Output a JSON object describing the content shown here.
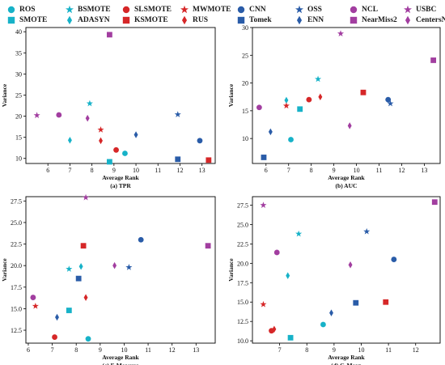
{
  "legend": [
    {
      "name": "ROS",
      "color": "#17b2c8",
      "marker": "circle"
    },
    {
      "name": "SMOTE",
      "color": "#17b2c8",
      "marker": "square"
    },
    {
      "name": "BSMOTE",
      "color": "#17b2c8",
      "marker": "star"
    },
    {
      "name": "ADASYN",
      "color": "#17b2c8",
      "marker": "diamond"
    },
    {
      "name": "SLSMOTE",
      "color": "#d62728",
      "marker": "circle"
    },
    {
      "name": "KSMOTE",
      "color": "#d62728",
      "marker": "square"
    },
    {
      "name": "MWMOTE",
      "color": "#d62728",
      "marker": "star"
    },
    {
      "name": "RUS",
      "color": "#d62728",
      "marker": "diamond"
    },
    {
      "name": "CNN",
      "color": "#2a5ca8",
      "marker": "circle"
    },
    {
      "name": "Tomek",
      "color": "#2a5ca8",
      "marker": "square"
    },
    {
      "name": "OSS",
      "color": "#2a5ca8",
      "marker": "star"
    },
    {
      "name": "ENN",
      "color": "#2a5ca8",
      "marker": "diamond"
    },
    {
      "name": "NCL",
      "color": "#a23ea0",
      "marker": "circle"
    },
    {
      "name": "NearMiss2",
      "color": "#a23ea0",
      "marker": "square"
    },
    {
      "name": "USBC",
      "color": "#a23ea0",
      "marker": "star"
    },
    {
      "name": "CentersNN",
      "color": "#a23ea0",
      "marker": "diamond"
    }
  ],
  "chart_data": [
    {
      "type": "scatter",
      "caption": "(a) TPR",
      "xlabel": "Average Rank",
      "ylabel": "Variance",
      "xlim": [
        5.0,
        13.6
      ],
      "ylim": [
        8.8,
        41.0
      ],
      "xticks": [
        6,
        7,
        8,
        9,
        10,
        11,
        12,
        13
      ],
      "yticks": [
        10,
        15,
        20,
        25,
        30,
        35,
        40
      ],
      "points": [
        {
          "name": "ROS",
          "x": 9.5,
          "y": 11.2
        },
        {
          "name": "SMOTE",
          "x": 8.8,
          "y": 9.2
        },
        {
          "name": "BSMOTE",
          "x": 7.9,
          "y": 23.0
        },
        {
          "name": "ADASYN",
          "x": 7.0,
          "y": 14.3
        },
        {
          "name": "SLSMOTE",
          "x": 9.1,
          "y": 12.0
        },
        {
          "name": "KSMOTE",
          "x": 13.3,
          "y": 9.6
        },
        {
          "name": "MWMOTE",
          "x": 8.4,
          "y": 16.8
        },
        {
          "name": "RUS",
          "x": 8.4,
          "y": 14.2
        },
        {
          "name": "CNN",
          "x": 12.9,
          "y": 14.2
        },
        {
          "name": "Tomek",
          "x": 11.9,
          "y": 9.8
        },
        {
          "name": "OSS",
          "x": 11.9,
          "y": 20.4
        },
        {
          "name": "ENN",
          "x": 10.0,
          "y": 15.6
        },
        {
          "name": "NCL",
          "x": 6.5,
          "y": 20.3
        },
        {
          "name": "NearMiss2",
          "x": 8.8,
          "y": 39.3
        },
        {
          "name": "USBC",
          "x": 5.5,
          "y": 20.2
        },
        {
          "name": "CentersNN",
          "x": 7.8,
          "y": 19.5
        }
      ]
    },
    {
      "type": "scatter",
      "caption": "(b) AUC",
      "xlabel": "Average Rank",
      "ylabel": "Variance",
      "xlim": [
        5.4,
        13.7
      ],
      "ylim": [
        5.5,
        30.0
      ],
      "xticks": [
        6,
        7,
        8,
        9,
        10,
        11,
        12,
        13
      ],
      "yticks": [
        10,
        15,
        20,
        25,
        30
      ],
      "points": [
        {
          "name": "ROS",
          "x": 7.1,
          "y": 9.8
        },
        {
          "name": "SMOTE",
          "x": 7.5,
          "y": 15.3
        },
        {
          "name": "BSMOTE",
          "x": 8.3,
          "y": 20.7
        },
        {
          "name": "ADASYN",
          "x": 6.9,
          "y": 16.9
        },
        {
          "name": "SLSMOTE",
          "x": 7.9,
          "y": 17.0
        },
        {
          "name": "KSMOTE",
          "x": 10.3,
          "y": 18.3
        },
        {
          "name": "MWMOTE",
          "x": 6.9,
          "y": 15.9
        },
        {
          "name": "RUS",
          "x": 8.4,
          "y": 17.5
        },
        {
          "name": "CNN",
          "x": 11.4,
          "y": 17.0
        },
        {
          "name": "Tomek",
          "x": 5.9,
          "y": 6.6
        },
        {
          "name": "OSS",
          "x": 11.5,
          "y": 16.3
        },
        {
          "name": "ENN",
          "x": 6.2,
          "y": 11.2
        },
        {
          "name": "NCL",
          "x": 5.7,
          "y": 15.6
        },
        {
          "name": "NearMiss2",
          "x": 13.4,
          "y": 24.1
        },
        {
          "name": "USBC",
          "x": 9.3,
          "y": 28.9
        },
        {
          "name": "CentersNN",
          "x": 9.7,
          "y": 12.3
        }
      ]
    },
    {
      "type": "scatter",
      "caption": "(c) F-Measure",
      "xlabel": "Average Rank",
      "ylabel": "Variance",
      "xlim": [
        5.9,
        13.8
      ],
      "ylim": [
        11.0,
        28.0
      ],
      "xticks": [
        6,
        7,
        8,
        9,
        10,
        11,
        12,
        13
      ],
      "yticks": [
        12.5,
        15.0,
        17.5,
        20.0,
        22.5,
        25.0,
        27.5
      ],
      "points": [
        {
          "name": "ROS",
          "x": 8.5,
          "y": 11.5
        },
        {
          "name": "SMOTE",
          "x": 7.7,
          "y": 14.8
        },
        {
          "name": "BSMOTE",
          "x": 7.7,
          "y": 19.6
        },
        {
          "name": "ADASYN",
          "x": 8.2,
          "y": 19.9
        },
        {
          "name": "SLSMOTE",
          "x": 7.1,
          "y": 11.7
        },
        {
          "name": "KSMOTE",
          "x": 8.3,
          "y": 22.3
        },
        {
          "name": "MWMOTE",
          "x": 6.3,
          "y": 15.3
        },
        {
          "name": "RUS",
          "x": 8.4,
          "y": 16.3
        },
        {
          "name": "CNN",
          "x": 10.7,
          "y": 23.0
        },
        {
          "name": "Tomek",
          "x": 8.1,
          "y": 18.5
        },
        {
          "name": "OSS",
          "x": 10.2,
          "y": 19.8
        },
        {
          "name": "ENN",
          "x": 7.2,
          "y": 14.0
        },
        {
          "name": "NCL",
          "x": 6.2,
          "y": 16.3
        },
        {
          "name": "NearMiss2",
          "x": 13.5,
          "y": 22.3
        },
        {
          "name": "USBC",
          "x": 8.4,
          "y": 27.9
        },
        {
          "name": "CentersNN",
          "x": 9.6,
          "y": 20.0
        }
      ]
    },
    {
      "type": "scatter",
      "caption": "(d) G-Mean",
      "xlabel": "Average Rank",
      "ylabel": "Variance",
      "xlim": [
        6.0,
        12.9
      ],
      "ylim": [
        9.7,
        28.6
      ],
      "xticks": [
        7,
        8,
        9,
        10,
        11,
        12
      ],
      "yticks": [
        10.0,
        12.5,
        15.0,
        17.5,
        20.0,
        22.5,
        25.0,
        27.5
      ],
      "points": [
        {
          "name": "ROS",
          "x": 8.6,
          "y": 12.1
        },
        {
          "name": "SMOTE",
          "x": 7.4,
          "y": 10.4
        },
        {
          "name": "BSMOTE",
          "x": 7.7,
          "y": 23.8
        },
        {
          "name": "ADASYN",
          "x": 7.3,
          "y": 18.4
        },
        {
          "name": "SLSMOTE",
          "x": 6.7,
          "y": 11.3
        },
        {
          "name": "KSMOTE",
          "x": 10.9,
          "y": 15.0
        },
        {
          "name": "MWMOTE",
          "x": 6.4,
          "y": 14.7
        },
        {
          "name": "RUS",
          "x": 6.8,
          "y": 11.5
        },
        {
          "name": "CNN",
          "x": 11.2,
          "y": 20.5
        },
        {
          "name": "Tomek",
          "x": 9.8,
          "y": 14.9
        },
        {
          "name": "OSS",
          "x": 10.2,
          "y": 24.1
        },
        {
          "name": "ENN",
          "x": 8.9,
          "y": 13.6
        },
        {
          "name": "NCL",
          "x": 6.9,
          "y": 21.4
        },
        {
          "name": "NearMiss2",
          "x": 12.7,
          "y": 27.9
        },
        {
          "name": "USBC",
          "x": 6.4,
          "y": 27.5
        },
        {
          "name": "CentersNN",
          "x": 9.6,
          "y": 19.8
        }
      ]
    }
  ]
}
